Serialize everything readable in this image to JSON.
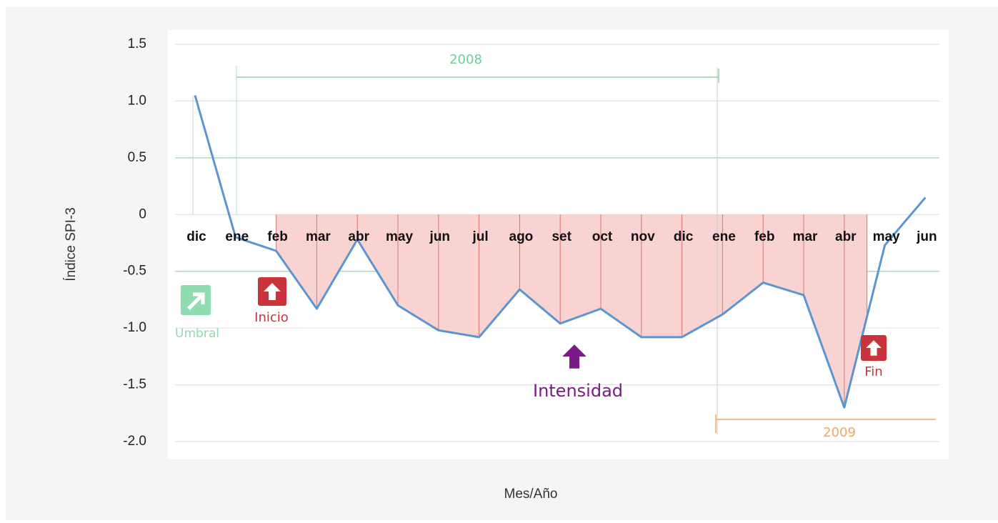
{
  "chart_data": {
    "type": "line",
    "y_label": "Índice SPI-3",
    "x_label": "Mes/Año",
    "categories": [
      "dic",
      "ene",
      "feb",
      "mar",
      "abr",
      "may",
      "jun",
      "jul",
      "ago",
      "set",
      "oct",
      "nov",
      "dic",
      "ene",
      "feb",
      "mar",
      "abr",
      "may",
      "jun"
    ],
    "series": [
      {
        "name": "SPI-3",
        "color": "#5b95d2",
        "values": [
          1.05,
          -0.2,
          -0.32,
          -0.83,
          -0.22,
          -0.8,
          -1.02,
          -1.08,
          -0.66,
          -0.96,
          -0.83,
          -1.08,
          -1.08,
          -0.88,
          -0.6,
          -0.71,
          -1.7,
          -0.27,
          0.15
        ]
      }
    ],
    "ylim": [
      -2.0,
      1.5
    ],
    "yticks": [
      {
        "value": -2,
        "label": "-2.0"
      },
      -1.5,
      {
        "value": -1,
        "label": "-1.0"
      },
      -0.5,
      0,
      0.5,
      {
        "value": 1,
        "label": "1.0"
      },
      1.5
    ],
    "grid": true,
    "thresholds": [
      0.5,
      -0.5
    ],
    "threshold_color": "#a8dcc0",
    "drought_fill": "#f9d2d2",
    "drought_line": "#d97474",
    "annotations": {
      "year_start": "2008",
      "year_end": "2009",
      "threshold": "Umbral",
      "start": "Inicio",
      "end": "Fin",
      "intensity": "Intensidad"
    }
  }
}
